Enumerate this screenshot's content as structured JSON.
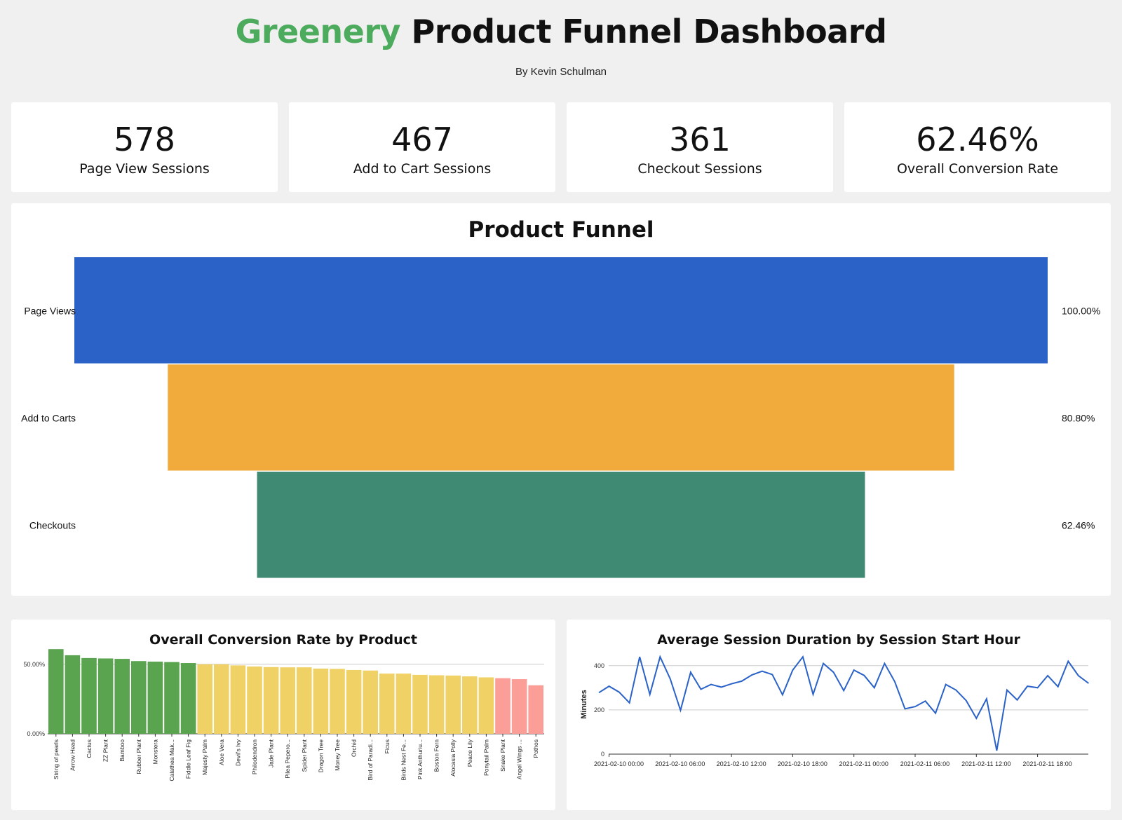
{
  "header": {
    "brand": "Greenery",
    "title_rest": " Product Funnel Dashboard",
    "byline": "By Kevin Schulman"
  },
  "kpis": [
    {
      "value": "578",
      "label": "Page View Sessions"
    },
    {
      "value": "467",
      "label": "Add to Cart Sessions"
    },
    {
      "value": "361",
      "label": "Checkout Sessions"
    },
    {
      "value": "62.46%",
      "label": "Overall Conversion Rate"
    }
  ],
  "colors": {
    "brand": "#4cab5c",
    "funnel": [
      "#2a62c8",
      "#f0ab3c",
      "#3e8a72"
    ],
    "bar_high": "#5ba44f",
    "bar_mid": "#f0d166",
    "bar_low": "#fb9e97",
    "line": "#2a62c8"
  },
  "chart_data": [
    {
      "type": "funnel",
      "title": "Product Funnel",
      "stages": [
        "Page Views",
        "Add to Carts",
        "Checkouts"
      ],
      "sessions": [
        578,
        467,
        361
      ],
      "percent_labels": [
        "100.00%",
        "80.80%",
        "62.46%"
      ]
    },
    {
      "type": "bar",
      "title": "Overall Conversion Rate by Product",
      "categories": [
        "String of pearls",
        "Arrow Head",
        "Cactus",
        "ZZ Plant",
        "Bamboo",
        "Rubber Plant",
        "Monstera",
        "Calathea Mak...",
        "Fiddle Leaf Fig",
        "Majesty Palm",
        "Aloe Vera",
        "Devil's Ivy",
        "Philodendron",
        "Jade Plant",
        "Pilea Pepero...",
        "Spider Plant",
        "Dragon Tree",
        "Money Tree",
        "Orchid",
        "Bird of Paradi...",
        "Ficus",
        "Birds Nest Fe...",
        "Pink Anthuriu...",
        "Boston Fern",
        "Alocasia Polly",
        "Peace Lily",
        "Ponytail Palm",
        "Snake Plant",
        "Angel Wings ...",
        "Pothos"
      ],
      "values": [
        60.9,
        56.5,
        54.5,
        54.2,
        53.9,
        52.3,
        51.9,
        51.6,
        50.9,
        50.0,
        50.0,
        49.2,
        48.4,
        48.0,
        47.8,
        47.8,
        46.9,
        46.7,
        45.9,
        45.5,
        43.3,
        43.3,
        42.4,
        42.1,
        41.9,
        41.3,
        40.6,
        40.0,
        39.3,
        34.9
      ],
      "tier": [
        "high",
        "high",
        "high",
        "high",
        "high",
        "high",
        "high",
        "high",
        "high",
        "mid",
        "mid",
        "mid",
        "mid",
        "mid",
        "mid",
        "mid",
        "mid",
        "mid",
        "mid",
        "mid",
        "mid",
        "mid",
        "mid",
        "mid",
        "mid",
        "mid",
        "mid",
        "low",
        "low",
        "low"
      ],
      "yticks": [
        "0.00%",
        "50.00%"
      ],
      "ylim": [
        0,
        62
      ]
    },
    {
      "type": "line",
      "title": "Average Session Duration by Session Start Hour",
      "ylabel": "Minutes",
      "yticks": [
        "0",
        "200",
        "400"
      ],
      "ylim": [
        0,
        450
      ],
      "xticks": [
        "2021-02-10 00:00",
        "2021-02-10 06:00",
        "2021-02-10 12:00",
        "2021-02-10 18:00",
        "2021-02-11 00:00",
        "2021-02-11 06:00",
        "2021-02-11 12:00",
        "2021-02-11 18:00"
      ],
      "x_hours_start": -1,
      "values": [
        278,
        307,
        280,
        232,
        440,
        270,
        440,
        340,
        198,
        370,
        293,
        315,
        303,
        318,
        330,
        358,
        375,
        360,
        268,
        380,
        440,
        270,
        410,
        370,
        287,
        380,
        356,
        300,
        410,
        328,
        205,
        215,
        240,
        185,
        315,
        290,
        242,
        162,
        250,
        16,
        290,
        245,
        307,
        300,
        355,
        305,
        420,
        355,
        320
      ]
    }
  ]
}
